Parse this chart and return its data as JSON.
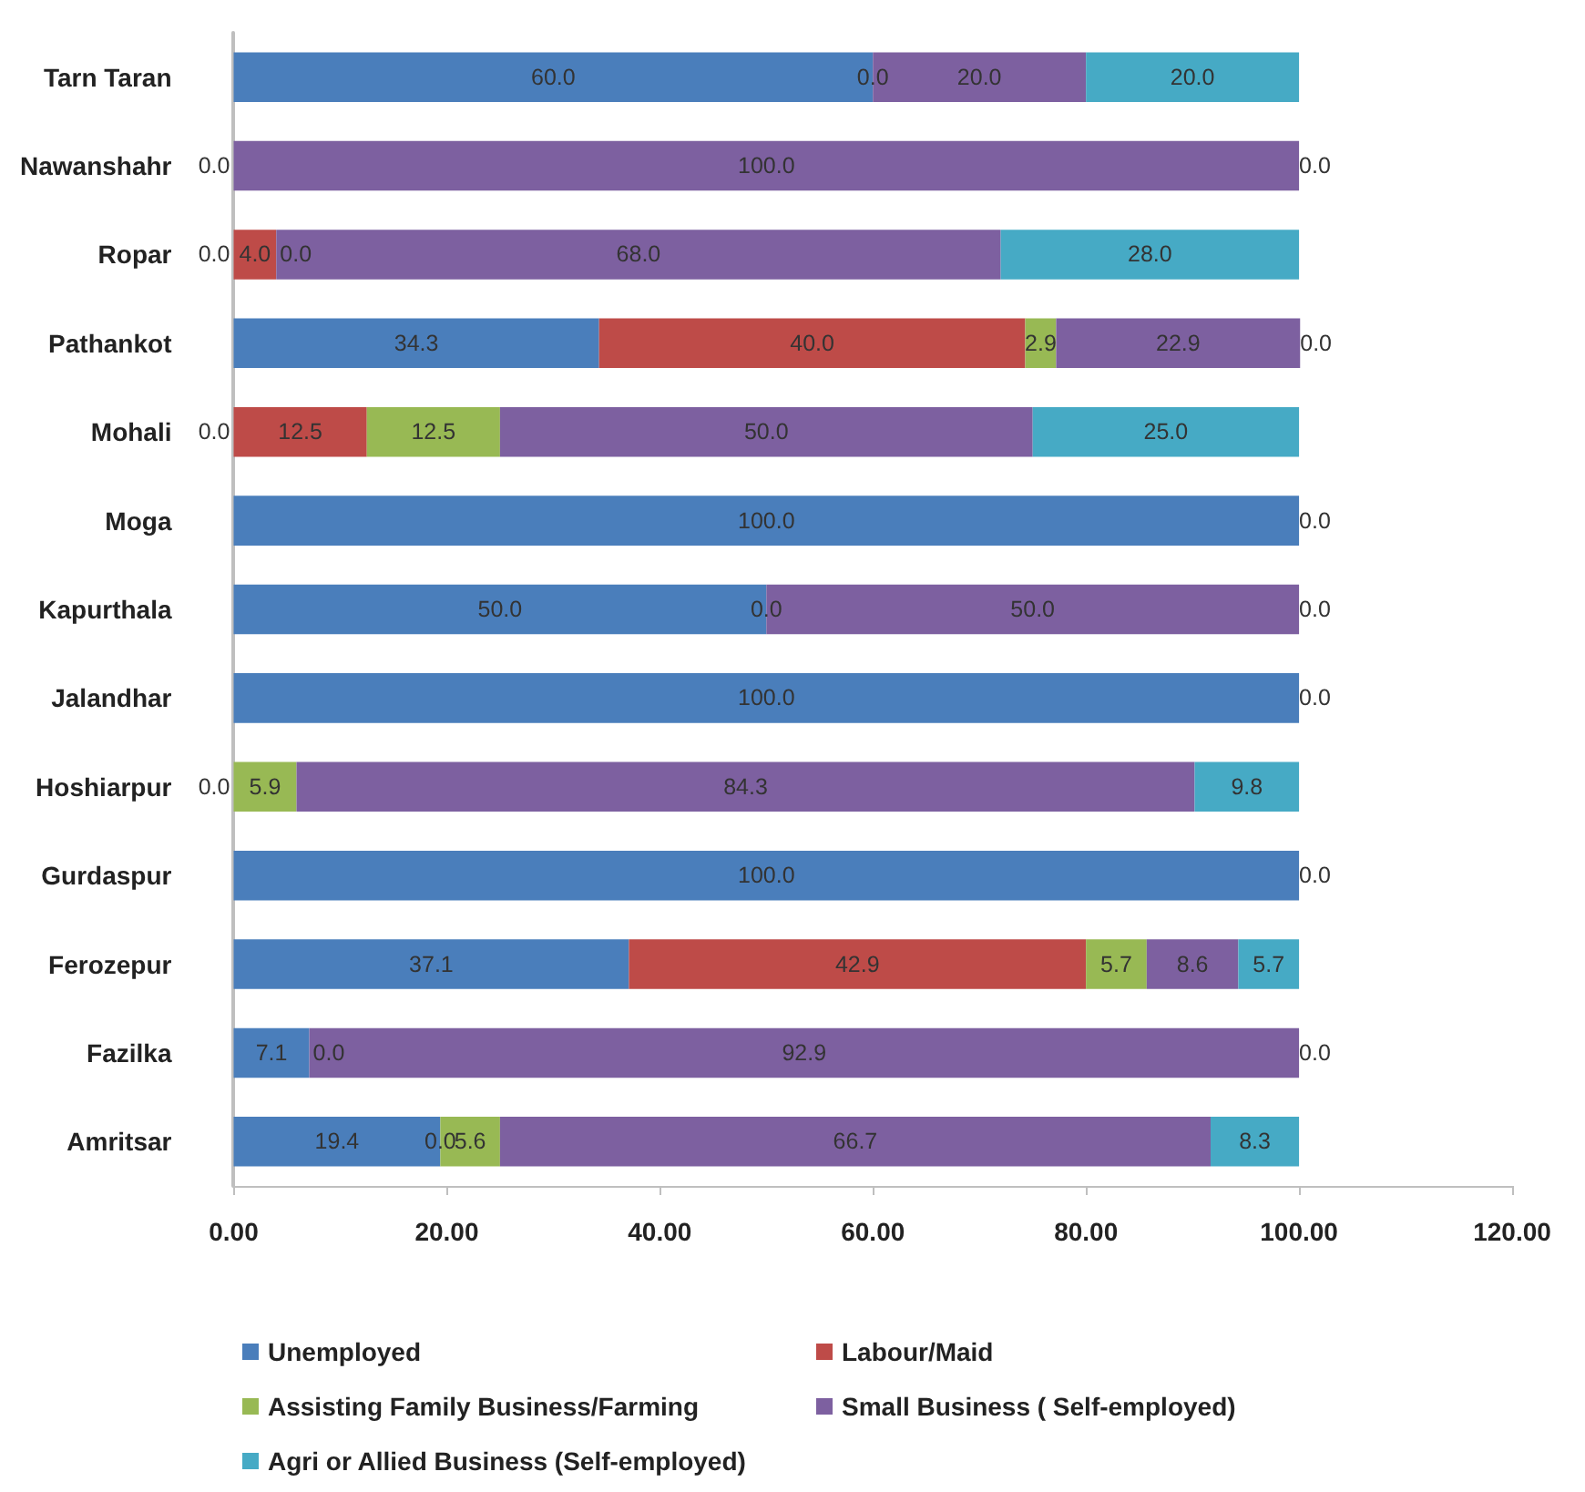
{
  "chart_data": {
    "type": "bar",
    "orientation": "horizontal",
    "stacked": true,
    "grid": false,
    "legend": "bottom",
    "categories": [
      "Tarn Taran",
      "Nawanshahr",
      "Ropar",
      "Pathankot",
      "Mohali",
      "Moga",
      "Kapurthala",
      "Jalandhar",
      "Hoshiarpur",
      "Gurdaspur",
      "Ferozepur",
      "Fazilka",
      "Amritsar"
    ],
    "xlim": [
      0,
      120
    ],
    "annotations": [
      {
        "text": "0.0",
        "x": 60.0,
        "y": "Tarn Taran"
      },
      {
        "text": "0.0",
        "x": 0,
        "y": "Nawanshahr"
      },
      {
        "text": "0.0",
        "x": 0,
        "y": "Ropar"
      },
      {
        "text": "0.0",
        "x": 4.0,
        "y": "Ropar"
      },
      {
        "text": "0.0",
        "x": 0,
        "y": "Mohali"
      },
      {
        "text": "0.0",
        "x": 50.0,
        "y": "Kapurthala"
      },
      {
        "text": "0.0",
        "x": 0,
        "y": "Hoshiarpur"
      },
      {
        "text": "0.0",
        "x": 7.1,
        "y": "Fazilka"
      },
      {
        "text": "0.0",
        "x": 19.4,
        "y": "Amritsar"
      }
    ],
    "xticks": [
      {
        "value": 0,
        "label": "0.00"
      },
      {
        "value": 20,
        "label": "20.00"
      },
      {
        "value": 40,
        "label": "40.00"
      },
      {
        "value": 60,
        "label": "60.00"
      },
      {
        "value": 80,
        "label": "80.00"
      },
      {
        "value": 100,
        "label": "100.00"
      },
      {
        "value": 120,
        "label": "120.00"
      }
    ],
    "series": [
      {
        "name": "Unemployed",
        "color": "#4a7ebb",
        "values": [
          60.0,
          0.0,
          0.0,
          34.3,
          0.0,
          100.0,
          50.0,
          100.0,
          0.0,
          100.0,
          37.1,
          7.1,
          19.4
        ],
        "value_labels": [
          "60.0",
          null,
          null,
          "34.3",
          null,
          "100.0",
          "50.0",
          "100.0",
          null,
          "100.0",
          "37.1",
          "7.1",
          "19.4"
        ]
      },
      {
        "name": "Labour/Maid",
        "color": "#be4b48",
        "values": [
          0.0,
          0.0,
          4.0,
          40.0,
          12.5,
          0.0,
          0.0,
          0.0,
          0.0,
          0.0,
          42.9,
          0.0,
          0.0
        ],
        "value_labels": [
          null,
          null,
          "4.0",
          "40.0",
          "12.5",
          "0.0",
          null,
          "0.0",
          null,
          "0.0",
          "42.9",
          null,
          null
        ]
      },
      {
        "name": "Assisting Family Business/Farming",
        "color": "#98b954",
        "values": [
          0.0,
          0.0,
          0.0,
          2.9,
          12.5,
          0.0,
          0.0,
          0.0,
          5.9,
          0.0,
          5.7,
          0.0,
          5.6
        ],
        "value_labels": [
          null,
          null,
          null,
          "2.9",
          "12.5",
          null,
          null,
          null,
          "5.9",
          null,
          "5.7",
          null,
          "5.6"
        ]
      },
      {
        "name": "Small Business ( Self-employed)",
        "color": "#7d60a0",
        "values": [
          20.0,
          100.0,
          68.0,
          22.9,
          50.0,
          0.0,
          50.0,
          0.0,
          84.3,
          0.0,
          8.6,
          92.9,
          66.7
        ],
        "value_labels": [
          "20.0",
          "100.0",
          "68.0",
          "22.9",
          "50.0",
          null,
          "50.0",
          null,
          "84.3",
          null,
          "8.6",
          "92.9",
          "66.7"
        ]
      },
      {
        "name": "Agri or Allied Business (Self-employed)",
        "color": "#46aac5",
        "values": [
          20.0,
          0.0,
          28.0,
          0.0,
          25.0,
          0.0,
          0.0,
          0.0,
          9.8,
          0.0,
          5.7,
          0.0,
          8.3
        ],
        "value_labels": [
          "20.0",
          "0.0",
          "28.0",
          "0.0",
          "25.0",
          null,
          "0.0",
          null,
          "9.8",
          null,
          "5.7",
          "0.0",
          "8.3"
        ]
      }
    ]
  }
}
